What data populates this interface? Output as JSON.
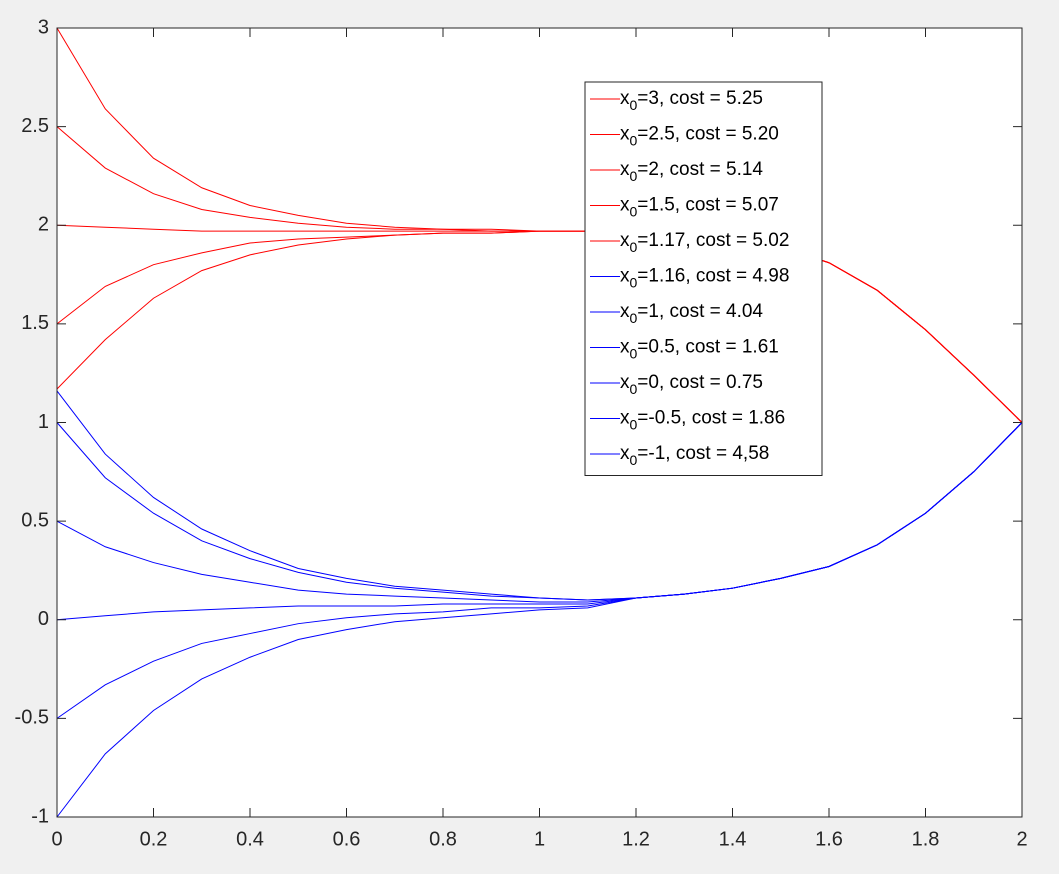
{
  "chart_data": {
    "type": "line",
    "x": [
      0,
      0.1,
      0.2,
      0.3,
      0.4,
      0.5,
      0.6,
      0.7,
      0.8,
      0.9,
      1.0,
      1.1,
      1.2,
      1.3,
      1.4,
      1.5,
      1.6,
      1.7,
      1.8,
      1.9,
      2.0
    ],
    "series": [
      {
        "name": "x0=3, cost = 5.25",
        "color": "#ff0000",
        "values": [
          3,
          2.59,
          2.34,
          2.19,
          2.1,
          2.05,
          2.01,
          1.99,
          1.98,
          1.98,
          1.97,
          1.97,
          1.97,
          1.95,
          1.93,
          1.89,
          1.81,
          1.67,
          1.47,
          1.24,
          1
        ]
      },
      {
        "name": "x0=2.5, cost = 5.20",
        "color": "#ff0000",
        "values": [
          2.5,
          2.29,
          2.16,
          2.08,
          2.04,
          2.01,
          1.99,
          1.98,
          1.98,
          1.97,
          1.97,
          1.97,
          1.97,
          1.95,
          1.93,
          1.89,
          1.81,
          1.67,
          1.47,
          1.24,
          1
        ]
      },
      {
        "name": "x0=2, cost = 5.14",
        "color": "#ff0000",
        "values": [
          2,
          1.99,
          1.98,
          1.97,
          1.97,
          1.97,
          1.97,
          1.97,
          1.97,
          1.97,
          1.97,
          1.97,
          1.97,
          1.95,
          1.93,
          1.89,
          1.81,
          1.67,
          1.47,
          1.24,
          1
        ]
      },
      {
        "name": "x0=1.5, cost = 5.07",
        "color": "#ff0000",
        "values": [
          1.5,
          1.69,
          1.8,
          1.86,
          1.91,
          1.93,
          1.94,
          1.95,
          1.96,
          1.96,
          1.97,
          1.97,
          1.97,
          1.95,
          1.93,
          1.89,
          1.81,
          1.67,
          1.47,
          1.24,
          1
        ]
      },
      {
        "name": "x0=1.17, cost = 5.02",
        "color": "#ff0000",
        "values": [
          1.17,
          1.42,
          1.63,
          1.77,
          1.85,
          1.9,
          1.93,
          1.95,
          1.96,
          1.96,
          1.97,
          1.97,
          1.97,
          1.95,
          1.93,
          1.89,
          1.81,
          1.67,
          1.47,
          1.24,
          1
        ]
      },
      {
        "name": "x0=1.16, cost = 4.98",
        "color": "#0000ff",
        "values": [
          1.16,
          0.84,
          0.62,
          0.46,
          0.35,
          0.26,
          0.21,
          0.17,
          0.15,
          0.13,
          0.11,
          0.1,
          0.11,
          0.13,
          0.16,
          0.21,
          0.27,
          0.38,
          0.54,
          0.75,
          1
        ]
      },
      {
        "name": "x0=1, cost = 4.04",
        "color": "#0000ff",
        "values": [
          1,
          0.72,
          0.54,
          0.4,
          0.31,
          0.24,
          0.19,
          0.16,
          0.14,
          0.12,
          0.11,
          0.1,
          0.11,
          0.13,
          0.16,
          0.21,
          0.27,
          0.38,
          0.54,
          0.75,
          1
        ]
      },
      {
        "name": "x0=0.5, cost = 1.61",
        "color": "#0000ff",
        "values": [
          0.5,
          0.37,
          0.29,
          0.23,
          0.19,
          0.15,
          0.13,
          0.12,
          0.11,
          0.1,
          0.09,
          0.09,
          0.11,
          0.13,
          0.16,
          0.21,
          0.27,
          0.38,
          0.54,
          0.75,
          1
        ]
      },
      {
        "name": "x0=0, cost = 0.75",
        "color": "#0000ff",
        "values": [
          0,
          0.02,
          0.04,
          0.05,
          0.06,
          0.07,
          0.07,
          0.07,
          0.08,
          0.08,
          0.08,
          0.08,
          0.11,
          0.13,
          0.16,
          0.21,
          0.27,
          0.38,
          0.54,
          0.75,
          1
        ]
      },
      {
        "name": "x0=-0.5, cost = 1.86",
        "color": "#0000ff",
        "values": [
          -0.5,
          -0.33,
          -0.21,
          -0.12,
          -0.07,
          -0.02,
          0.01,
          0.03,
          0.04,
          0.06,
          0.06,
          0.07,
          0.11,
          0.13,
          0.16,
          0.21,
          0.27,
          0.38,
          0.54,
          0.75,
          1
        ]
      },
      {
        "name": "x0=-1, cost = 4,58",
        "color": "#0000ff",
        "values": [
          -1,
          -0.68,
          -0.46,
          -0.3,
          -0.19,
          -0.1,
          -0.05,
          -0.01,
          0.01,
          0.03,
          0.05,
          0.06,
          0.11,
          0.13,
          0.16,
          0.21,
          0.27,
          0.38,
          0.54,
          0.75,
          1
        ]
      }
    ],
    "xlim": [
      0,
      2
    ],
    "xticks": [
      0,
      0.2,
      0.4,
      0.6,
      0.8,
      1,
      1.2,
      1.4,
      1.6,
      1.8,
      2
    ],
    "ylim": [
      -1,
      3
    ],
    "yticks": [
      -1,
      -0.5,
      0,
      0.5,
      1,
      1.5,
      2,
      2.5,
      3
    ],
    "legend": "upper-right"
  }
}
